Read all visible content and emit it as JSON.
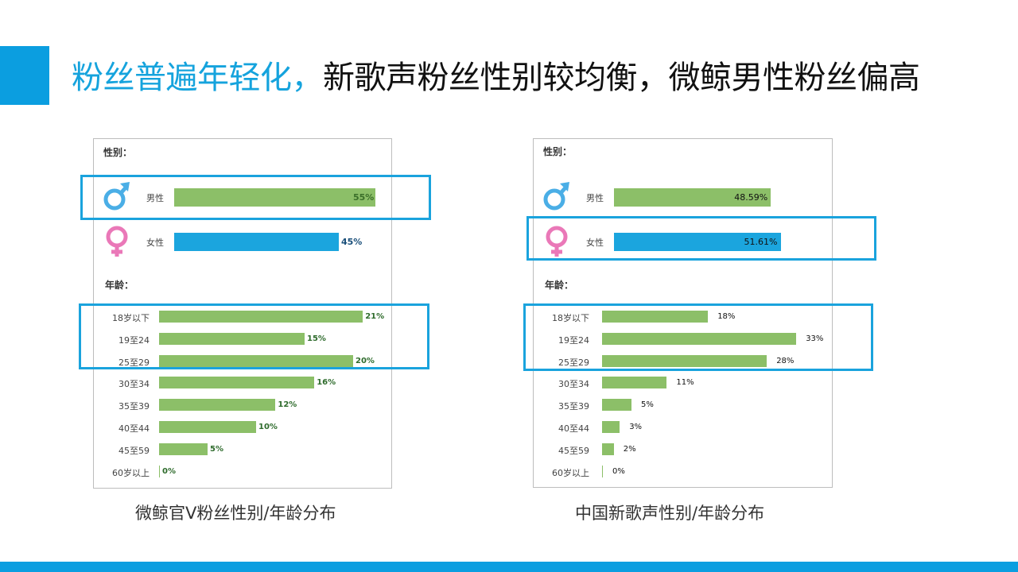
{
  "title": {
    "highlight": "粉丝普遍年轻化，",
    "rest": "新歌声粉丝性别较均衡，微鲸男性粉丝偏高"
  },
  "colors": {
    "accent": "#0b9ee0",
    "male_bar": "#8cbf68",
    "female_bar": "#1ba5de",
    "age_bar": "#8cbf68",
    "highlight_box": "#1aa3dd"
  },
  "icons": {
    "male": "male-symbol-icon",
    "female": "female-symbol-icon"
  },
  "chart_data": [
    {
      "type": "bar",
      "caption": "微鲸官V粉丝性别/年龄分布",
      "gender_section_label": "性别：",
      "age_section_label": "年龄：",
      "gender": {
        "categories": [
          "男性",
          "女性"
        ],
        "values": [
          55,
          45
        ],
        "labels": [
          "55%",
          "45%"
        ]
      },
      "age": {
        "categories": [
          "18岁以下",
          "19至24",
          "25至29",
          "30至34",
          "35至39",
          "40至44",
          "45至59",
          "60岁以上"
        ],
        "values": [
          21,
          15,
          20,
          16,
          12,
          10,
          5,
          0
        ],
        "labels": [
          "21%",
          "15%",
          "20%",
          "16%",
          "12%",
          "10%",
          "5%",
          "0%"
        ]
      }
    },
    {
      "type": "bar",
      "caption": "中国新歌声性别/年龄分布",
      "gender_section_label": "性别：",
      "age_section_label": "年龄：",
      "gender": {
        "categories": [
          "男性",
          "女性"
        ],
        "values": [
          48.59,
          51.61
        ],
        "labels": [
          "48.59%",
          "51.61%"
        ]
      },
      "age": {
        "categories": [
          "18岁以下",
          "19至24",
          "25至29",
          "30至34",
          "35至39",
          "40至44",
          "45至59",
          "60岁以上"
        ],
        "values": [
          18,
          33,
          28,
          11,
          5,
          3,
          2,
          0
        ],
        "labels": [
          "18%",
          "33%",
          "28%",
          "11%",
          "5%",
          "3%",
          "2%",
          "0%"
        ]
      }
    }
  ]
}
